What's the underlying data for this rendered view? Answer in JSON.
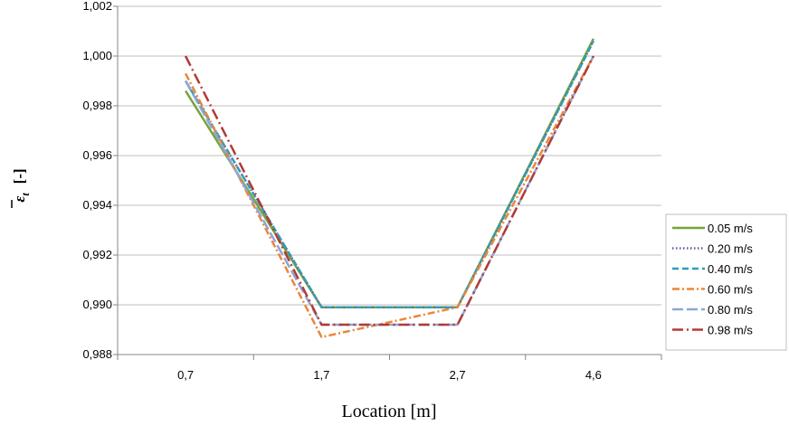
{
  "chart_data": {
    "type": "line",
    "categories": [
      "0,7",
      "1,7",
      "2,7",
      "4,6"
    ],
    "xlabel": "Location [m]",
    "ylabel_main": "ε",
    "ylabel_sub": "t",
    "ylabel_unit": "[-]",
    "ylim": [
      0.988,
      1.002
    ],
    "yticks": [
      0.988,
      0.99,
      0.992,
      0.994,
      0.996,
      0.998,
      1.0,
      1.002
    ],
    "ytick_labels": [
      "0,988",
      "0,990",
      "0,992",
      "0,994",
      "0,996",
      "0,998",
      "1,000",
      "1,002"
    ],
    "grid": true,
    "legend_position": "right",
    "series": [
      {
        "name": "0.05 m/s",
        "values": [
          0.9986,
          0.9899,
          0.9899,
          1.0007
        ],
        "color": "#77a33a",
        "dash": "solid"
      },
      {
        "name": "0.20 m/s",
        "values": [
          0.999,
          0.9899,
          0.9899,
          1.0006
        ],
        "color": "#6a5a9c",
        "dash": "dot"
      },
      {
        "name": "0.40 m/s",
        "values": [
          0.999,
          0.9899,
          0.9899,
          1.0006
        ],
        "color": "#2e9dbd",
        "dash": "dash"
      },
      {
        "name": "0.60 m/s",
        "values": [
          0.9993,
          0.9887,
          0.9899,
          1.0
        ],
        "color": "#e8873a",
        "dash": "dashdot"
      },
      {
        "name": "0.80 m/s",
        "values": [
          0.999,
          0.9892,
          0.9892,
          1.0
        ],
        "color": "#8ea5d6",
        "dash": "longdash"
      },
      {
        "name": "0.98 m/s",
        "values": [
          1.0,
          0.9892,
          0.9892,
          1.0
        ],
        "color": "#b23a36",
        "dash": "longdashdot"
      }
    ]
  }
}
